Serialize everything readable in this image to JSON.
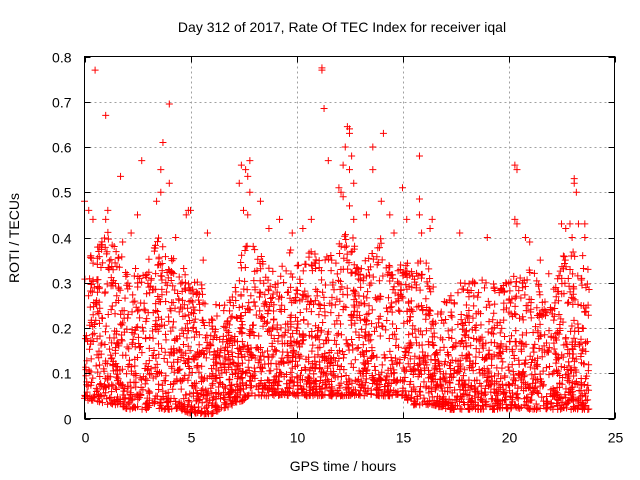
{
  "chart_data": {
    "type": "scatter",
    "title": "Day 312 of 2017, Rate Of TEC Index for receiver iqal",
    "xlabel": "GPS time / hours",
    "ylabel": "ROTI / TECUs",
    "xlim": [
      0,
      25
    ],
    "ylim": [
      0,
      0.8
    ],
    "xticks": [
      0,
      5,
      10,
      15,
      20,
      25
    ],
    "yticks": [
      0,
      0.1,
      0.2,
      0.3,
      0.4,
      0.5,
      0.6,
      0.7,
      0.8
    ],
    "xtick_labels": [
      "0",
      "5",
      "10",
      "15",
      "20",
      "25"
    ],
    "ytick_labels": [
      "0",
      "0.1",
      "0.2",
      "0.3",
      "0.4",
      "0.5",
      "0.6",
      "0.7",
      "0.8"
    ],
    "grid": true,
    "marker": "plus",
    "color": "#ff0000",
    "series": [
      {
        "name": "ROTI",
        "points": [
          [
            0.5,
            0.77
          ],
          [
            1.0,
            0.67
          ],
          [
            1.7,
            0.535
          ],
          [
            2.7,
            0.57
          ],
          [
            3.7,
            0.61
          ],
          [
            4.0,
            0.695
          ],
          [
            4.0,
            0.52
          ],
          [
            3.6,
            0.55
          ],
          [
            3.6,
            0.5
          ],
          [
            1.1,
            0.46
          ],
          [
            1.0,
            0.44
          ],
          [
            0.2,
            0.46
          ],
          [
            0.0,
            0.48
          ],
          [
            0.4,
            0.44
          ],
          [
            2.5,
            0.45
          ],
          [
            3.4,
            0.48
          ],
          [
            4.8,
            0.45
          ],
          [
            4.9,
            0.46
          ],
          [
            5.0,
            0.46
          ],
          [
            1.4,
            0.38
          ],
          [
            1.8,
            0.39
          ],
          [
            2.2,
            0.41
          ],
          [
            4.3,
            0.4
          ],
          [
            5.8,
            0.41
          ],
          [
            5.6,
            0.35
          ],
          [
            7.3,
            0.52
          ],
          [
            7.4,
            0.56
          ],
          [
            7.6,
            0.55
          ],
          [
            7.8,
            0.57
          ],
          [
            7.7,
            0.535
          ],
          [
            7.8,
            0.5
          ],
          [
            7.5,
            0.46
          ],
          [
            7.7,
            0.45
          ],
          [
            8.3,
            0.48
          ],
          [
            8.7,
            0.42
          ],
          [
            9.2,
            0.44
          ],
          [
            9.8,
            0.41
          ],
          [
            10.3,
            0.42
          ],
          [
            10.7,
            0.44
          ],
          [
            11.2,
            0.775
          ],
          [
            11.2,
            0.77
          ],
          [
            11.3,
            0.685
          ],
          [
            11.5,
            0.57
          ],
          [
            12.0,
            0.51
          ],
          [
            12.1,
            0.5
          ],
          [
            12.2,
            0.56
          ],
          [
            12.4,
            0.645
          ],
          [
            12.5,
            0.64
          ],
          [
            12.5,
            0.63
          ],
          [
            12.3,
            0.6
          ],
          [
            12.6,
            0.58
          ],
          [
            12.5,
            0.55
          ],
          [
            12.7,
            0.52
          ],
          [
            12.2,
            0.49
          ],
          [
            12.5,
            0.47
          ],
          [
            12.7,
            0.44
          ],
          [
            13.3,
            0.45
          ],
          [
            13.6,
            0.6
          ],
          [
            13.6,
            0.55
          ],
          [
            14.1,
            0.63
          ],
          [
            14.4,
            0.45
          ],
          [
            14.0,
            0.48
          ],
          [
            14.6,
            0.41
          ],
          [
            15.0,
            0.51
          ],
          [
            15.2,
            0.44
          ],
          [
            15.8,
            0.58
          ],
          [
            15.8,
            0.485
          ],
          [
            15.8,
            0.45
          ],
          [
            15.9,
            0.41
          ],
          [
            16.4,
            0.44
          ],
          [
            16.3,
            0.42
          ],
          [
            17.7,
            0.41
          ],
          [
            18.4,
            0.3
          ],
          [
            19.0,
            0.4
          ],
          [
            20.3,
            0.56
          ],
          [
            20.4,
            0.55
          ],
          [
            20.3,
            0.44
          ],
          [
            20.4,
            0.43
          ],
          [
            20.8,
            0.4
          ],
          [
            21.0,
            0.39
          ],
          [
            21.5,
            0.35
          ],
          [
            21.9,
            0.32
          ],
          [
            22.5,
            0.43
          ],
          [
            22.7,
            0.42
          ],
          [
            22.9,
            0.43
          ],
          [
            23.1,
            0.53
          ],
          [
            23.1,
            0.52
          ],
          [
            23.2,
            0.5
          ],
          [
            23.0,
            0.4
          ],
          [
            23.3,
            0.43
          ],
          [
            23.6,
            0.43
          ],
          [
            23.6,
            0.4
          ],
          [
            23.5,
            0.36
          ]
        ],
        "envelope": {
          "description": "dense band of ROTI values across 0-23.8 h",
          "x": [
            0,
            0.5,
            1,
            1.5,
            2,
            2.5,
            3,
            3.5,
            4,
            4.5,
            5,
            5.5,
            6,
            6.5,
            7,
            7.5,
            8,
            8.5,
            9,
            9.5,
            10,
            10.5,
            11,
            11.5,
            12,
            12.5,
            13,
            13.5,
            14,
            14.5,
            15,
            15.5,
            16,
            16.5,
            17,
            17.5,
            18,
            18.5,
            19,
            19.5,
            20,
            20.5,
            21,
            21.5,
            22,
            22.5,
            23,
            23.5,
            23.8
          ],
          "upper": [
            0.34,
            0.38,
            0.42,
            0.38,
            0.36,
            0.33,
            0.36,
            0.4,
            0.37,
            0.33,
            0.34,
            0.31,
            0.26,
            0.25,
            0.28,
            0.38,
            0.4,
            0.34,
            0.33,
            0.36,
            0.39,
            0.37,
            0.38,
            0.36,
            0.41,
            0.43,
            0.34,
            0.36,
            0.4,
            0.32,
            0.35,
            0.34,
            0.36,
            0.3,
            0.26,
            0.29,
            0.31,
            0.3,
            0.32,
            0.29,
            0.31,
            0.32,
            0.34,
            0.3,
            0.26,
            0.36,
            0.38,
            0.34,
            0.34
          ],
          "lower": [
            0.04,
            0.04,
            0.03,
            0.03,
            0.02,
            0.02,
            0.02,
            0.02,
            0.02,
            0.02,
            0.01,
            0.01,
            0.01,
            0.02,
            0.03,
            0.04,
            0.05,
            0.05,
            0.05,
            0.05,
            0.05,
            0.05,
            0.05,
            0.05,
            0.05,
            0.05,
            0.05,
            0.05,
            0.05,
            0.05,
            0.05,
            0.03,
            0.03,
            0.03,
            0.02,
            0.02,
            0.02,
            0.02,
            0.02,
            0.02,
            0.02,
            0.02,
            0.02,
            0.02,
            0.02,
            0.02,
            0.02,
            0.02,
            0.02
          ],
          "count": 3200
        }
      }
    ]
  }
}
